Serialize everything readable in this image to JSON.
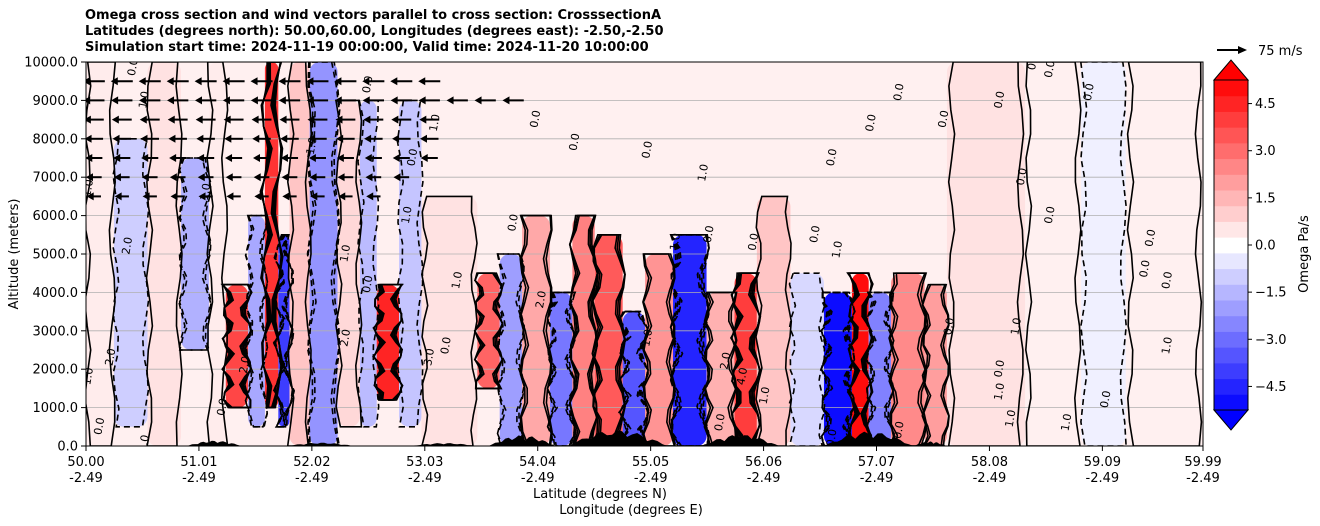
{
  "chart_data": {
    "type": "heatmap",
    "subtype": "filled-contour cross section with contour lines and wind vectors",
    "title_lines": [
      "Omega cross section and wind vectors parallel to cross section: CrosssectionA",
      "Latitudes (degrees north): 50.00,60.00, Longitudes (degrees east): -2.50,-2.50",
      "Simulation start time: 2024-11-19 00:00:00, Valid time: 2024-11-20 10:00:00"
    ],
    "ylabel": "Altitude (meters)",
    "xlabel_lines": [
      "Latitude (degrees N)",
      "Longitude (degrees E)"
    ],
    "ylim": [
      0,
      10000
    ],
    "xlim": [
      50.0,
      59.99
    ],
    "yticks": [
      {
        "value": 0,
        "label": "0.0"
      },
      {
        "value": 1000,
        "label": "1000.0"
      },
      {
        "value": 2000,
        "label": "2000.0"
      },
      {
        "value": 3000,
        "label": "3000.0"
      },
      {
        "value": 4000,
        "label": "4000.0"
      },
      {
        "value": 5000,
        "label": "5000.0"
      },
      {
        "value": 6000,
        "label": "6000.0"
      },
      {
        "value": 7000,
        "label": "7000.0"
      },
      {
        "value": 8000,
        "label": "8000.0"
      },
      {
        "value": 9000,
        "label": "9000.0"
      },
      {
        "value": 10000,
        "label": "10000.0"
      }
    ],
    "xticks": [
      {
        "value": 50.0,
        "lat": "50.00",
        "lon": "-2.49"
      },
      {
        "value": 51.01,
        "lat": "51.01",
        "lon": "-2.49"
      },
      {
        "value": 52.02,
        "lat": "52.02",
        "lon": "-2.49"
      },
      {
        "value": 53.03,
        "lat": "53.03",
        "lon": "-2.49"
      },
      {
        "value": 54.04,
        "lat": "54.04",
        "lon": "-2.49"
      },
      {
        "value": 55.05,
        "lat": "55.05",
        "lon": "-2.49"
      },
      {
        "value": 56.06,
        "lat": "56.06",
        "lon": "-2.49"
      },
      {
        "value": 57.07,
        "lat": "57.07",
        "lon": "-2.49"
      },
      {
        "value": 58.08,
        "lat": "58.08",
        "lon": "-2.49"
      },
      {
        "value": 59.09,
        "lat": "59.09",
        "lon": "-2.49"
      },
      {
        "value": 59.99,
        "lat": "59.99",
        "lon": "-2.49"
      }
    ],
    "grid": "horizontal",
    "colorbar": {
      "label": "Omega Pa/s",
      "range": [
        -5.25,
        5.25
      ],
      "extend": "both",
      "ticks": [
        {
          "value": 4.5,
          "label": "4.5"
        },
        {
          "value": 3.0,
          "label": "3.0"
        },
        {
          "value": 1.5,
          "label": "1.5"
        },
        {
          "value": 0.0,
          "label": "0.0"
        },
        {
          "value": -1.5,
          "label": "−1.5"
        },
        {
          "value": -3.0,
          "label": "−3.0"
        },
        {
          "value": -4.5,
          "label": "−4.5"
        }
      ],
      "low_color": "#0000ff",
      "high_color": "#ff0000"
    },
    "quiver_key": {
      "label": "75 m/s"
    },
    "series": [
      {
        "name": "omega_cells",
        "description": "approximate omega (Pa/s) by latitude band and altitude",
        "cells": [
          {
            "x0": 50.0,
            "x1": 50.25,
            "y0": 0,
            "y1": 10000,
            "value": 0.4
          },
          {
            "x0": 50.25,
            "x1": 50.55,
            "y0": 500,
            "y1": 8000,
            "value": -1.0
          },
          {
            "x0": 50.55,
            "x1": 50.85,
            "y0": 0,
            "y1": 10000,
            "value": 0.6
          },
          {
            "x0": 50.85,
            "x1": 51.1,
            "y0": 2500,
            "y1": 7500,
            "value": -1.6
          },
          {
            "x0": 51.1,
            "x1": 51.25,
            "y0": 0,
            "y1": 10000,
            "value": 0.4
          },
          {
            "x0": 51.25,
            "x1": 51.45,
            "y0": 1000,
            "y1": 4200,
            "value": 3.8
          },
          {
            "x0": 51.45,
            "x1": 51.6,
            "y0": 500,
            "y1": 6000,
            "value": -1.8
          },
          {
            "x0": 51.6,
            "x1": 51.72,
            "y0": 1000,
            "y1": 10000,
            "value": 4.2
          },
          {
            "x0": 51.72,
            "x1": 51.82,
            "y0": 500,
            "y1": 5500,
            "value": -4.0
          },
          {
            "x0": 51.82,
            "x1": 52.0,
            "y0": 0,
            "y1": 10000,
            "value": 1.2
          },
          {
            "x0": 52.0,
            "x1": 52.25,
            "y0": 0,
            "y1": 10000,
            "value": -2.2
          },
          {
            "x0": 52.25,
            "x1": 52.45,
            "y0": 500,
            "y1": 9000,
            "value": 0.8
          },
          {
            "x0": 52.45,
            "x1": 52.6,
            "y0": 500,
            "y1": 9000,
            "value": -1.4
          },
          {
            "x0": 52.6,
            "x1": 52.8,
            "y0": 1200,
            "y1": 4200,
            "value": 4.5
          },
          {
            "x0": 52.8,
            "x1": 53.0,
            "y0": 500,
            "y1": 9000,
            "value": -1.2
          },
          {
            "x0": 53.0,
            "x1": 53.5,
            "y0": 0,
            "y1": 6500,
            "value": 0.6
          },
          {
            "x0": 53.5,
            "x1": 53.7,
            "y0": 1500,
            "y1": 4500,
            "value": 3.2
          },
          {
            "x0": 53.7,
            "x1": 53.9,
            "y0": 0,
            "y1": 5000,
            "value": -2.0
          },
          {
            "x0": 53.9,
            "x1": 54.15,
            "y0": 0,
            "y1": 6000,
            "value": 1.8
          },
          {
            "x0": 54.15,
            "x1": 54.35,
            "y0": 0,
            "y1": 4000,
            "value": -2.8
          },
          {
            "x0": 54.35,
            "x1": 54.55,
            "y0": 0,
            "y1": 6000,
            "value": 2.6
          },
          {
            "x0": 54.55,
            "x1": 54.8,
            "y0": 0,
            "y1": 5500,
            "value": 3.4
          },
          {
            "x0": 54.8,
            "x1": 55.0,
            "y0": 0,
            "y1": 3500,
            "value": -3.5
          },
          {
            "x0": 55.0,
            "x1": 55.25,
            "y0": 0,
            "y1": 5000,
            "value": 2.2
          },
          {
            "x0": 55.25,
            "x1": 55.55,
            "y0": 0,
            "y1": 5500,
            "value": -4.5
          },
          {
            "x0": 55.55,
            "x1": 55.8,
            "y0": 0,
            "y1": 4000,
            "value": 1.6
          },
          {
            "x0": 55.8,
            "x1": 56.0,
            "y0": 0,
            "y1": 4500,
            "value": 4.0
          },
          {
            "x0": 56.0,
            "x1": 56.3,
            "y0": 0,
            "y1": 6500,
            "value": 1.2
          },
          {
            "x0": 56.3,
            "x1": 56.6,
            "y0": 0,
            "y1": 4500,
            "value": -0.8
          },
          {
            "x0": 56.6,
            "x1": 56.85,
            "y0": 0,
            "y1": 4000,
            "value": -5.0
          },
          {
            "x0": 56.85,
            "x1": 57.0,
            "y0": 0,
            "y1": 4500,
            "value": 5.0
          },
          {
            "x0": 57.0,
            "x1": 57.2,
            "y0": 0,
            "y1": 4000,
            "value": -2.6
          },
          {
            "x0": 57.2,
            "x1": 57.5,
            "y0": 0,
            "y1": 4500,
            "value": 2.4
          },
          {
            "x0": 57.5,
            "x1": 57.7,
            "y0": 0,
            "y1": 4200,
            "value": 2.0
          },
          {
            "x0": 57.7,
            "x1": 58.4,
            "y0": 0,
            "y1": 10000,
            "value": 0.6
          },
          {
            "x0": 58.4,
            "x1": 58.9,
            "y0": 0,
            "y1": 10000,
            "value": 0.3
          },
          {
            "x0": 58.9,
            "x1": 59.3,
            "y0": 0,
            "y1": 10000,
            "value": -0.3
          },
          {
            "x0": 59.3,
            "x1": 59.99,
            "y0": 0,
            "y1": 10000,
            "value": 0.3
          }
        ]
      },
      {
        "name": "wind_vectors",
        "description": "arrows pointing toward lower latitude (northerly wind)",
        "rows": [
          {
            "y": 9500,
            "from": 50.0,
            "to": 53.3,
            "strength": 1.0
          },
          {
            "y": 9000,
            "from": 50.0,
            "to": 53.9,
            "strength": 0.95
          },
          {
            "y": 8500,
            "from": 50.0,
            "to": 53.3,
            "strength": 0.85
          },
          {
            "y": 8000,
            "from": 50.0,
            "to": 53.3,
            "strength": 0.75
          },
          {
            "y": 7500,
            "from": 50.0,
            "to": 53.3,
            "strength": 0.65
          },
          {
            "y": 7000,
            "from": 50.0,
            "to": 53.0,
            "strength": 0.55
          },
          {
            "y": 6500,
            "from": 50.0,
            "to": 52.8,
            "strength": 0.45
          }
        ]
      }
    ],
    "annotations": [
      {
        "text": "0.0",
        "x": 50.45,
        "y": 9850
      },
      {
        "text": "1.0",
        "x": 50.55,
        "y": 9000
      },
      {
        "text": "1.0",
        "x": 50.05,
        "y": 6700
      },
      {
        "text": "2.0",
        "x": 50.4,
        "y": 5200
      },
      {
        "text": "2.0",
        "x": 50.25,
        "y": 2300
      },
      {
        "text": "1.0",
        "x": 50.05,
        "y": 1800
      },
      {
        "text": "0.0",
        "x": 50.15,
        "y": 500
      },
      {
        "text": "0.0",
        "x": 50.55,
        "y": 50
      },
      {
        "text": "1.0",
        "x": 51.1,
        "y": 6600
      },
      {
        "text": "2.0",
        "x": 51.45,
        "y": 2100
      },
      {
        "text": "0.0",
        "x": 51.25,
        "y": 1000
      },
      {
        "text": "1.0",
        "x": 52.35,
        "y": 5000
      },
      {
        "text": "2.0",
        "x": 52.35,
        "y": 2800
      },
      {
        "text": "1.0",
        "x": 52.05,
        "y": 7800
      },
      {
        "text": "0.0",
        "x": 52.55,
        "y": 9400
      },
      {
        "text": "1.0",
        "x": 53.15,
        "y": 8400
      },
      {
        "text": "0.0",
        "x": 52.95,
        "y": 7500
      },
      {
        "text": "1.0",
        "x": 52.9,
        "y": 6000
      },
      {
        "text": "3.0",
        "x": 53.1,
        "y": 2300
      },
      {
        "text": "1.0",
        "x": 53.35,
        "y": 4300
      },
      {
        "text": "0.0",
        "x": 53.85,
        "y": 5800
      },
      {
        "text": "0.0",
        "x": 54.05,
        "y": 8500
      },
      {
        "text": "2.0",
        "x": 54.1,
        "y": 3800
      },
      {
        "text": "0.0",
        "x": 54.4,
        "y": 7900
      },
      {
        "text": "0.0",
        "x": 55.05,
        "y": 7700
      },
      {
        "text": "1.0",
        "x": 55.55,
        "y": 7100
      },
      {
        "text": "1.0",
        "x": 55.3,
        "y": 5300
      },
      {
        "text": "0.0",
        "x": 55.6,
        "y": 5500
      },
      {
        "text": "1.0",
        "x": 55.05,
        "y": 2800
      },
      {
        "text": "4.0",
        "x": 55.9,
        "y": 1800
      },
      {
        "text": "2.0",
        "x": 55.75,
        "y": 2200
      },
      {
        "text": "1.0",
        "x": 56.1,
        "y": 1300
      },
      {
        "text": "0.0",
        "x": 56.0,
        "y": 5300
      },
      {
        "text": "0.0",
        "x": 56.55,
        "y": 5500
      },
      {
        "text": "1.0",
        "x": 56.75,
        "y": 5100
      },
      {
        "text": "0.0",
        "x": 56.7,
        "y": 7500
      },
      {
        "text": "0.0",
        "x": 57.05,
        "y": 8400
      },
      {
        "text": "0.0",
        "x": 57.7,
        "y": 8500
      },
      {
        "text": "0.0",
        "x": 57.3,
        "y": 9200
      },
      {
        "text": "0.0",
        "x": 58.2,
        "y": 9000
      },
      {
        "text": "0.0",
        "x": 58.4,
        "y": 7000
      },
      {
        "text": "0.0",
        "x": 58.65,
        "y": 6000
      },
      {
        "text": "0.0",
        "x": 59.55,
        "y": 5400
      },
      {
        "text": "0.0",
        "x": 59.5,
        "y": 4600
      },
      {
        "text": "0.0",
        "x": 59.7,
        "y": 4300
      },
      {
        "text": "1.0",
        "x": 58.35,
        "y": 3100
      },
      {
        "text": "1.0",
        "x": 58.2,
        "y": 1400
      },
      {
        "text": "1.0",
        "x": 58.3,
        "y": 700
      },
      {
        "text": "0.0",
        "x": 57.75,
        "y": 3100
      },
      {
        "text": "1.0",
        "x": 59.7,
        "y": 2600
      },
      {
        "text": "0.0",
        "x": 59.15,
        "y": 1200
      },
      {
        "text": "0.0",
        "x": 58.2,
        "y": 2000
      },
      {
        "text": "1.0",
        "x": 58.8,
        "y": 600
      },
      {
        "text": "0.0",
        "x": 58.65,
        "y": 9800
      },
      {
        "text": "0.0",
        "x": 58.5,
        "y": 10000
      },
      {
        "text": "0.0",
        "x": 59.0,
        "y": 9200
      },
      {
        "text": "0.0",
        "x": 55.7,
        "y": 600
      },
      {
        "text": "0.0",
        "x": 56.7,
        "y": 200
      },
      {
        "text": "0.0",
        "x": 57.3,
        "y": 400
      },
      {
        "text": "0.0",
        "x": 52.55,
        "y": 4200
      },
      {
        "text": "0.0",
        "x": 53.25,
        "y": 2600
      }
    ]
  }
}
